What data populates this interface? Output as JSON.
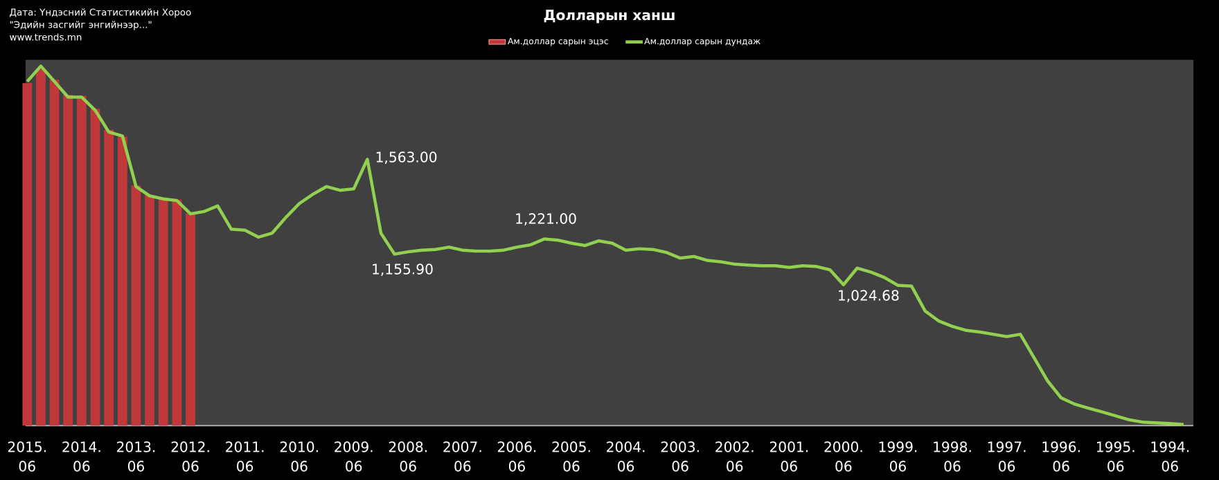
{
  "chart_data": {
    "type": "bar_line",
    "title": "Долларын ханш",
    "source": [
      "Дата: Үндэсний Статистикийн Хороо",
      "\"Эдийн засгийг энгийнээр...\"",
      "www.trends.mn"
    ],
    "categories": [
      "2015.\n06",
      null,
      null,
      null,
      "2014.\n06",
      null,
      null,
      null,
      "2013.\n06",
      null,
      null,
      null,
      "2012.\n06",
      null,
      null,
      null,
      "2011.\n06",
      null,
      null,
      null,
      "2010.\n06",
      null,
      null,
      null,
      "2009.\n06",
      null,
      null,
      null,
      "2008.\n06",
      null,
      null,
      null,
      "2007.\n06",
      null,
      null,
      null,
      "2006.\n06",
      null,
      null,
      null,
      "2005.\n06",
      null,
      null,
      null,
      "2004.\n06",
      null,
      null,
      null,
      "2003.\n06",
      null,
      null,
      null,
      "2002.\n06",
      null,
      null,
      null,
      "2001.\n06",
      null,
      null,
      null,
      "2000.\n06",
      null,
      null,
      null,
      "1999.\n06",
      null,
      null,
      null,
      "1998.\n06",
      null,
      null,
      null,
      "1997.\n06",
      null,
      null,
      null,
      "1996.\n06",
      null,
      null,
      null,
      "1995.\n06",
      null,
      null,
      null,
      "1994.\n06",
      null
    ],
    "ylim": [
      420,
      1990
    ],
    "series": [
      {
        "name": "Ам.доллар сарын эцэс",
        "kind": "bar",
        "color": "#c0383a",
        "values": [
          1890,
          1950,
          1905,
          1840,
          1835,
          1780,
          1690,
          1660,
          1450,
          1410,
          1398,
          1390,
          1330,
          null,
          null,
          null,
          null,
          null,
          null,
          null,
          null,
          null,
          null,
          null,
          null,
          null,
          null,
          null,
          null,
          null,
          null,
          null,
          null,
          null,
          null,
          null,
          null,
          null,
          null,
          null,
          null,
          null,
          null,
          null,
          null,
          null,
          null,
          null,
          null,
          null,
          null,
          null,
          null,
          null,
          null,
          null,
          null,
          null,
          null,
          null,
          null,
          null,
          null,
          null,
          null,
          null,
          null,
          null,
          null,
          null,
          null,
          null,
          null,
          null,
          null,
          null,
          null,
          null,
          null,
          null,
          null,
          null,
          null,
          null,
          null,
          null
        ]
      },
      {
        "name": "Ам.доллар сарын дундаж",
        "kind": "line",
        "color": "#92d050",
        "values": [
          1897,
          1963,
          1897,
          1830,
          1830,
          1773,
          1680,
          1663,
          1446,
          1406,
          1393,
          1386,
          1329,
          1339,
          1363,
          1263,
          1259,
          1229,
          1246,
          1313,
          1373,
          1413,
          1446,
          1430,
          1436,
          1563,
          1246,
          1155.9,
          1166,
          1173,
          1176,
          1186,
          1173,
          1169,
          1169,
          1173,
          1186,
          1196,
          1221,
          1216,
          1203,
          1193,
          1213,
          1203,
          1173,
          1179,
          1176,
          1163,
          1139,
          1146,
          1129,
          1123,
          1113,
          1109,
          1106,
          1106,
          1099,
          1106,
          1103,
          1089,
          1024.68,
          1096,
          1079,
          1056,
          1022,
          1019,
          912,
          869,
          846,
          829,
          822,
          812,
          802,
          812,
          712,
          612,
          539,
          512,
          495,
          479,
          462,
          445,
          435,
          432,
          429,
          425
        ],
        "value_labels": [
          null,
          null,
          null,
          null,
          null,
          null,
          null,
          null,
          null,
          null,
          null,
          null,
          null,
          null,
          null,
          null,
          null,
          null,
          null,
          null,
          null,
          null,
          null,
          null,
          null,
          "1,563.00",
          null,
          "1,155.90",
          null,
          null,
          null,
          null,
          null,
          null,
          null,
          null,
          null,
          null,
          "1,221.00",
          null,
          null,
          null,
          null,
          null,
          null,
          null,
          null,
          null,
          null,
          null,
          null,
          null,
          null,
          null,
          null,
          null,
          null,
          null,
          null,
          null,
          "1,024.68",
          null,
          null,
          null,
          null,
          null,
          null,
          null,
          null,
          null,
          null,
          null,
          null,
          null,
          null,
          null,
          null,
          null,
          null,
          null,
          null,
          null,
          null,
          null,
          null,
          null
        ]
      }
    ]
  }
}
